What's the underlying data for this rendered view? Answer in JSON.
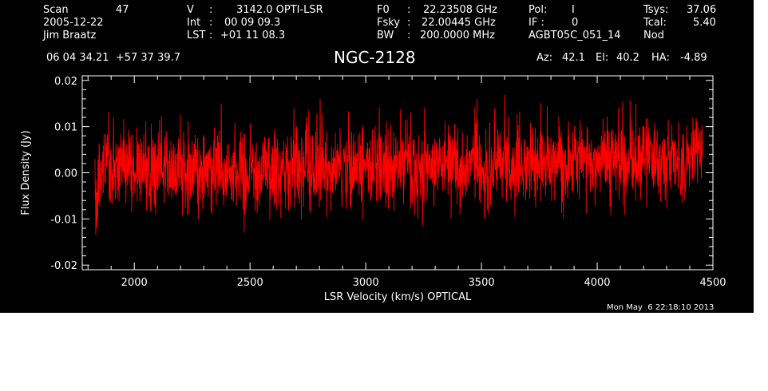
{
  "header": {
    "scan": {
      "label": "Scan",
      "value": "47"
    },
    "date": "2005-12-22",
    "observer": "Jim Braatz",
    "v": {
      "label": "V",
      "sep": ":",
      "value": "3142.0 OPTI-LSR"
    },
    "int": {
      "label": "Int",
      "sep": ":",
      "value": "00 09 09.3"
    },
    "lst": {
      "label": "LST",
      "sep": ":",
      "value": "+01 11 08.3"
    },
    "f0": {
      "label": "F0",
      "sep": ":",
      "value": "22.23508 GHz"
    },
    "fsky": {
      "label": "Fsky",
      "sep": ":",
      "value": "22.00445 GHz"
    },
    "bw": {
      "label": "BW",
      "sep": ":",
      "value": "200.0000 MHz"
    },
    "pol": {
      "label": "Pol:",
      "value": "I"
    },
    "if": {
      "label": "IF :",
      "value": "0"
    },
    "project": "AGBT05C_051_14",
    "tsys": {
      "label": "Tsys:",
      "value": "37.06"
    },
    "tcal": {
      "label": "Tcal:",
      "value": "5.40"
    },
    "mode": "Nod",
    "coords": "06 04 34.21  +57 37 39.7",
    "source": "NGC-2128",
    "az": {
      "label": "Az:",
      "value": "42.1"
    },
    "el": {
      "label": "El:",
      "value": "40.2"
    },
    "ha": {
      "label": "HA:",
      "value": "-4.89"
    }
  },
  "footer": {
    "timestamp": "Mon May  6 22:18:10 2013"
  },
  "colors": {
    "background": "#000000",
    "axes": "#ffffff",
    "trace": "#ff0000"
  },
  "chart_data": {
    "type": "line",
    "title": "NGC-2128",
    "xlabel": "LSR Velocity (km/s) OPTICAL",
    "ylabel": "Flux Density (Jy)",
    "xlim": [
      1775,
      4500
    ],
    "ylim": [
      -0.021,
      0.021
    ],
    "xticks": [
      2000,
      2500,
      3000,
      3500,
      4000,
      4500
    ],
    "xtick_labels": [
      "2000",
      "2500",
      "3000",
      "3500",
      "4000",
      "4500"
    ],
    "yticks": [
      -0.02,
      -0.01,
      0.0,
      0.01,
      0.02
    ],
    "ytick_labels": [
      "-0.02",
      "-0.01",
      "0.00",
      "0.01",
      "0.02"
    ],
    "grid": false,
    "series": [
      {
        "x_start": 1830,
        "x_end": 4455,
        "noise_rms": 0.0045,
        "values": [
          -0.008,
          0.002,
          0.004,
          -0.001,
          0.003,
          0.001,
          0.0,
          0.002,
          -0.002,
          0.001,
          0.002,
          0.003,
          0.002,
          0.001,
          0.0,
          0.001,
          -0.001,
          0.002,
          0.001,
          0.0,
          0.001,
          0.002,
          0.0,
          0.001,
          -0.001,
          0.0,
          0.001,
          0.001,
          0.0,
          0.002,
          0.001,
          0.002,
          0.001,
          0.002,
          0.0,
          0.001,
          0.002,
          0.001,
          0.0,
          0.001,
          0.001,
          0.002,
          0.001,
          0.0,
          0.002,
          0.003,
          0.002,
          0.001,
          0.002,
          0.001,
          0.002,
          0.003,
          0.002,
          0.002,
          0.001,
          0.002,
          0.003,
          0.001,
          0.002,
          0.003,
          0.002,
          0.001,
          0.002,
          0.002,
          0.001,
          0.002,
          0.003,
          0.003,
          0.002,
          0.001,
          0.002,
          0.004,
          0.003,
          0.002,
          0.001,
          0.002,
          0.003,
          0.002,
          0.001,
          0.002,
          0.003,
          0.004,
          0.003,
          0.001,
          0.002,
          0.003,
          0.002,
          0.004,
          0.006,
          0.005
        ]
      }
    ]
  }
}
